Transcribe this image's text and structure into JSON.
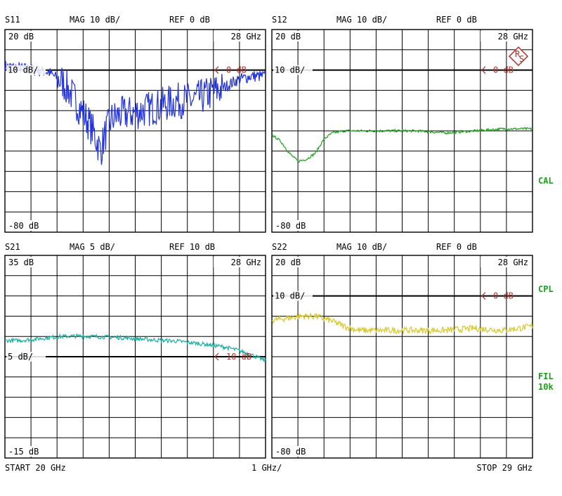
{
  "instrument": {
    "start_label": "START  20 GHz",
    "span_label": "1 GHz/",
    "stop_label": "STOP 29 GHz",
    "logo_letters": "RS"
  },
  "side_labels": [
    {
      "text": "CAL",
      "color": "#1aa01a"
    },
    {
      "text": "CPL",
      "color": "#1aa01a"
    },
    {
      "text": "FIL",
      "color": "#1aa01a"
    },
    {
      "text": "10k",
      "color": "#1aa01a"
    }
  ],
  "colors": {
    "grid": "#000000",
    "text": "#000000",
    "marker": "#b0302a",
    "s11": "#2233dd",
    "s12": "#1aa01a",
    "s21": "#1aaea0",
    "s22": "#d8c832"
  },
  "chart_data": [
    {
      "type": "line",
      "id": "s11",
      "title": "S11",
      "scale_label": "MAG 10 dB/",
      "ref_label": "REF 0 dB",
      "top_label": "20 dB",
      "mid_label": "10 dB/",
      "bottom_label": "-80 dB",
      "freq_label": "28 GHz",
      "marker_label": "0 dB",
      "xlim": [
        20,
        29
      ],
      "ylim": [
        -80,
        20
      ],
      "ref_level": 0,
      "series": [
        {
          "color": "#2233dd",
          "noise": 3,
          "x": [
            20,
            20.5,
            21,
            21.5,
            22,
            22.3,
            22.6,
            22.9,
            23.1,
            23.3,
            23.5,
            23.7,
            24,
            24.5,
            25,
            25.5,
            26,
            26.5,
            27,
            27.5,
            28,
            28.5,
            29
          ],
          "y": [
            2,
            1,
            0,
            -1,
            -6,
            -12,
            -19,
            -26,
            -32,
            -40,
            -30,
            -24,
            -22,
            -21,
            -19,
            -17,
            -15,
            -15,
            -12,
            -9,
            -5,
            -3,
            -3
          ]
        }
      ]
    },
    {
      "type": "line",
      "id": "s12",
      "title": "S12",
      "scale_label": "MAG 10 dB/",
      "ref_label": "REF 0 dB",
      "top_label": "20 dB",
      "mid_label": "10 dB/",
      "bottom_label": "-80 dB",
      "freq_label": "28 GHz",
      "marker_label": "0 dB",
      "xlim": [
        20,
        29
      ],
      "ylim": [
        -80,
        20
      ],
      "ref_level": 0,
      "series": [
        {
          "color": "#1aa01a",
          "noise": 0.6,
          "x": [
            20,
            20.3,
            20.6,
            20.9,
            21.2,
            21.5,
            21.8,
            22.1,
            22.5,
            23,
            24,
            25,
            26,
            27,
            28,
            29
          ],
          "y": [
            -32,
            -35,
            -41,
            -45,
            -44,
            -41,
            -34,
            -31,
            -30,
            -30,
            -30,
            -30,
            -31,
            -30,
            -29,
            -29
          ]
        }
      ]
    },
    {
      "type": "line",
      "id": "s21",
      "title": "S21",
      "scale_label": "MAG 5 dB/",
      "ref_label": "REF 10 dB",
      "top_label": "35 dB",
      "mid_label": "5 dB/",
      "bottom_label": "-15 dB",
      "freq_label": "28 GHz",
      "marker_label": "10 dB",
      "xlim": [
        20,
        29
      ],
      "ylim": [
        -15,
        35
      ],
      "ref_level": 10,
      "series": [
        {
          "color": "#1aaea0",
          "noise": 0.5,
          "x": [
            20,
            20.5,
            21,
            21.5,
            22,
            22.5,
            23,
            24,
            25,
            26,
            27,
            27.5,
            28,
            28.5,
            29
          ],
          "y": [
            14,
            14,
            14.3,
            14.7,
            15,
            15.1,
            15,
            14.7,
            14.2,
            13.8,
            13,
            12.5,
            11.7,
            10.5,
            9
          ]
        }
      ]
    },
    {
      "type": "line",
      "id": "s22",
      "title": "S22",
      "scale_label": "MAG 10 dB/",
      "ref_label": "REF 0 dB",
      "top_label": "20 dB",
      "mid_label": "10 dB/",
      "bottom_label": "-80 dB",
      "freq_label": "28 GHz",
      "marker_label": "0 dB",
      "xlim": [
        20,
        29
      ],
      "ylim": [
        -80,
        20
      ],
      "ref_level": 0,
      "series": [
        {
          "color": "#d8c832",
          "noise": 1.6,
          "x": [
            20,
            20.5,
            21,
            21.5,
            22,
            22.5,
            23,
            24,
            25,
            26,
            27,
            28,
            28.5,
            29
          ],
          "y": [
            -12,
            -11,
            -10,
            -10,
            -12,
            -15,
            -17,
            -17,
            -17,
            -17,
            -16,
            -17,
            -16,
            -15
          ]
        }
      ]
    }
  ]
}
